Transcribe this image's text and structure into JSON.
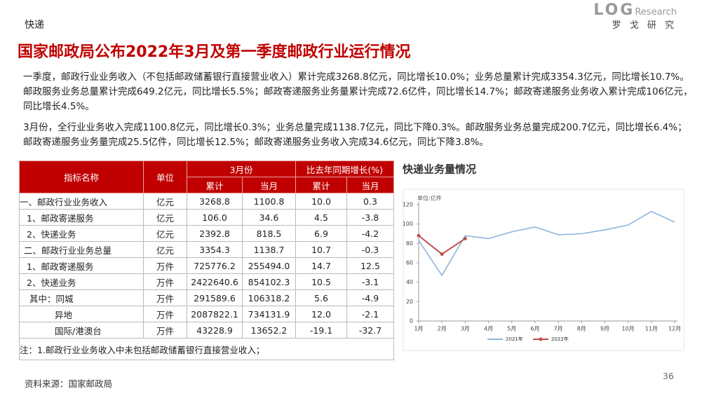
{
  "header": {
    "section": "快递",
    "title": "国家邮政局公布2022年3月及第一季度邮政行业运行情况"
  },
  "logo": {
    "brand": "LOG",
    "sub": "Research",
    "cn": "罗 戈 研 究"
  },
  "paragraphs": [
    "一季度，邮政行业业务收入（不包括邮政储蓄银行直接营业收入）累计完成3268.8亿元，同比增长10.0%；业务总量累计完成3354.3亿元，同比增长10.7%。邮政服务业务总量累计完成649.2亿元，同比增长5.5%；邮政寄递服务业务量累计完成72.6亿件，同比增长14.7%；邮政寄递服务业务收入累计完成106亿元，同比增长4.5%。",
    "3月份，全行业业务收入完成1100.8亿元，同比增长0.3%；业务总量完成1138.7亿元，同比下降0.3%。邮政服务业务总量完成200.7亿元，同比增长6.4%；邮政寄递服务业务量完成25.5亿件，同比增长12.5%；邮政寄递服务业务收入完成34.6亿元，同比下降3.8%。"
  ],
  "table": {
    "head": [
      "指标名称",
      "单位",
      "3月份",
      "比去年同期增长(%)"
    ],
    "subhead": [
      "累计",
      "当月",
      "累计",
      "当月"
    ],
    "rows": [
      [
        "一、邮政行业业务收入",
        "亿元",
        "3268.8",
        "1100.8",
        "10.0",
        "0.3"
      ],
      [
        "1、邮政寄递服务",
        "亿元",
        "106.0",
        "34.6",
        "4.5",
        "-3.8"
      ],
      [
        "2、快递业务",
        "亿元",
        "2392.8",
        "818.5",
        "6.9",
        "-4.2"
      ],
      [
        "二、邮政行业业务总量",
        "亿元",
        "3354.3",
        "1138.7",
        "10.7",
        "-0.3"
      ],
      [
        "1、邮政寄递服务",
        "万件",
        "725776.2",
        "255494.0",
        "14.7",
        "12.5"
      ],
      [
        "2、快递业务",
        "万件",
        "2422640.6",
        "854102.3",
        "10.5",
        "-3.1"
      ],
      [
        "其中：同城",
        "万件",
        "291589.6",
        "106318.2",
        "5.6",
        "-4.9"
      ],
      [
        "异地",
        "万件",
        "2087822.1",
        "734131.9",
        "12.0",
        "-2.1"
      ],
      [
        "国际/港澳台",
        "万件",
        "43228.9",
        "13652.2",
        "-19.1",
        "-32.7"
      ]
    ],
    "note": "注：1.邮政行业业务收入中未包括邮政储蓄银行直接营业收入；"
  },
  "chart_data": {
    "type": "line",
    "title": "快递业务量情况",
    "unit_label": "单位:亿件",
    "categories": [
      "1月",
      "2月",
      "3月",
      "4月",
      "5月",
      "6月",
      "7月",
      "8月",
      "9月",
      "10月",
      "11月",
      "12月"
    ],
    "series": [
      {
        "name": "2021年",
        "color": "#8fb4dd",
        "values": [
          83,
          47,
          88,
          85,
          92,
          97,
          89,
          90,
          94,
          99,
          113,
          102
        ]
      },
      {
        "name": "2022年",
        "color": "#c0504d",
        "values": [
          88,
          69,
          85,
          null,
          null,
          null,
          null,
          null,
          null,
          null,
          null,
          null
        ]
      }
    ],
    "ylim": [
      0,
      120
    ],
    "yticks": [
      0,
      20,
      40,
      60,
      80,
      100,
      120
    ],
    "grid": false,
    "legend": "bottom"
  },
  "footer": {
    "source": "资料来源：国家邮政局",
    "page": "36"
  }
}
